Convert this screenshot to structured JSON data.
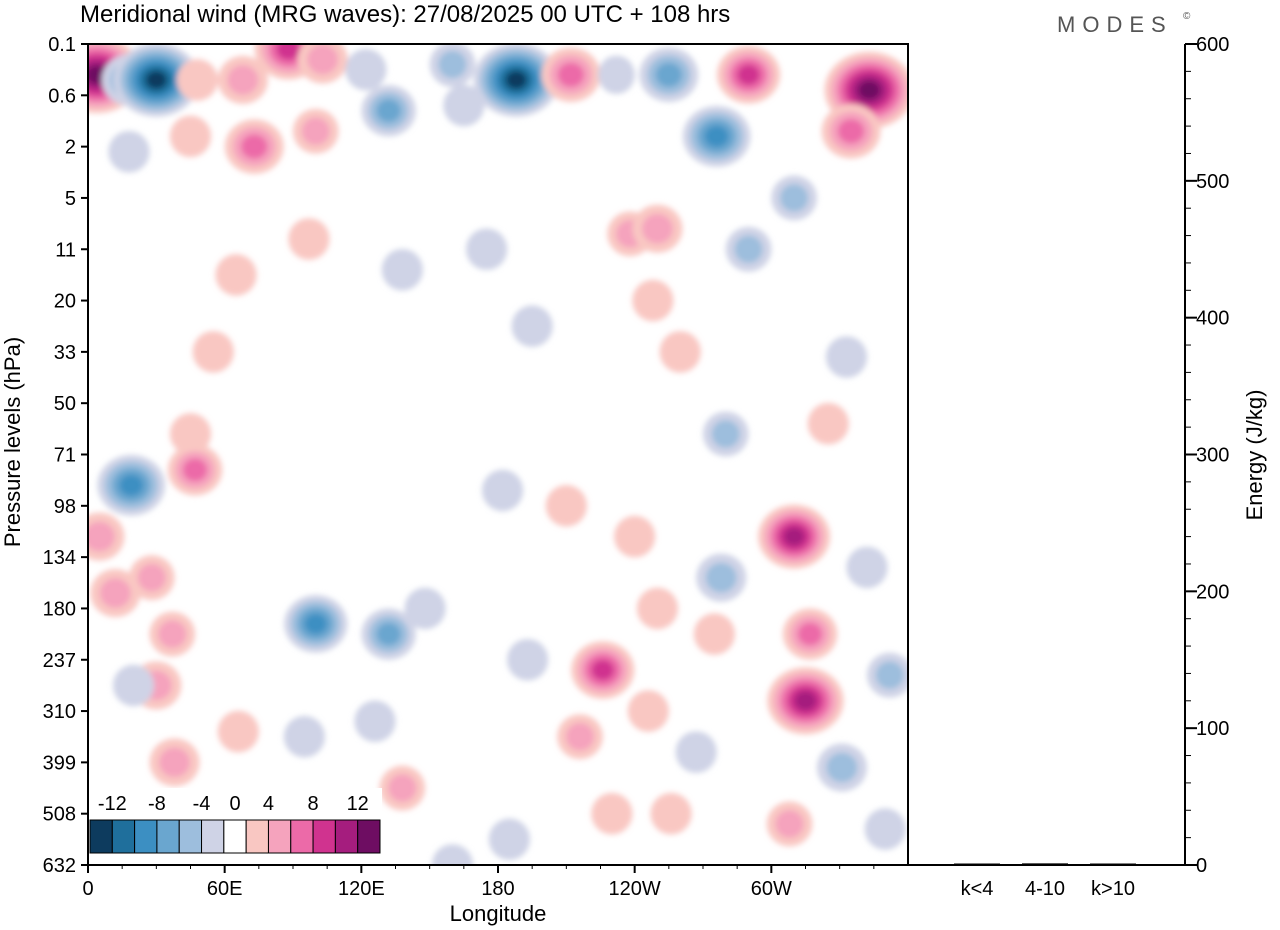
{
  "chart_data": [
    {
      "type": "heatmap",
      "title": "Meridional wind (MRG waves):  27/08/2025  00 UTC  + 108 hrs",
      "brand": "MODES",
      "brand_mark": "©",
      "xlabel": "Longitude",
      "ylabel": "Pressure levels (hPa)",
      "x_ticks": [
        "0",
        "60E",
        "120E",
        "180",
        "120W",
        "60W"
      ],
      "x_tick_degrees": [
        0,
        60,
        120,
        180,
        240,
        300
      ],
      "x_range_degrees": [
        0,
        360
      ],
      "y_ticks": [
        "0.1",
        "0.6",
        "2",
        "5",
        "11",
        "20",
        "33",
        "50",
        "71",
        "98",
        "134",
        "180",
        "237",
        "310",
        "399",
        "508",
        "632"
      ],
      "y_scale": "level index (top = 0.1 hPa, bottom = 632 hPa)",
      "colorbar": {
        "labels": [
          "-12",
          "-8",
          "-4",
          "0",
          "4",
          "8",
          "12"
        ],
        "bins": [
          -14,
          -12,
          -10,
          -8,
          -6,
          -4,
          -2,
          2,
          4,
          6,
          8,
          10,
          12,
          14
        ],
        "colors": [
          "#0d3b5e",
          "#1f6f9c",
          "#3c8fc2",
          "#6aa6cf",
          "#9dbedd",
          "#cfd3e6",
          "#ffffff",
          "#f9c7c2",
          "#f5a3bd",
          "#ec6aa8",
          "#d0338f",
          "#a51d7e",
          "#6e0d62"
        ]
      },
      "legend_position": "bottom-left",
      "features": [
        {
          "lon": 4,
          "level": 0.6,
          "value": 14
        },
        {
          "lon": 18,
          "level": 0.7,
          "value": -6
        },
        {
          "lon": 30,
          "level": 0.7,
          "value": -13
        },
        {
          "lon": 48,
          "level": 0.7,
          "value": 3
        },
        {
          "lon": 68,
          "level": 0.7,
          "value": 5
        },
        {
          "lon": 88,
          "level": 0.1,
          "value": 9
        },
        {
          "lon": 103,
          "level": 0.3,
          "value": 5
        },
        {
          "lon": 122,
          "level": 0.5,
          "value": -3
        },
        {
          "lon": 132,
          "level": 1.3,
          "value": -6
        },
        {
          "lon": 165,
          "level": 1.2,
          "value": -3
        },
        {
          "lon": 160,
          "level": 0.4,
          "value": -4
        },
        {
          "lon": 188,
          "level": 0.7,
          "value": -13
        },
        {
          "lon": 212,
          "level": 0.6,
          "value": 7
        },
        {
          "lon": 232,
          "level": 0.6,
          "value": -2
        },
        {
          "lon": 255,
          "level": 0.6,
          "value": -7
        },
        {
          "lon": 290,
          "level": 0.6,
          "value": 8
        },
        {
          "lon": 343,
          "level": 0.9,
          "value": 14
        },
        {
          "lon": 276,
          "level": 1.8,
          "value": -9
        },
        {
          "lon": 310,
          "level": 3.0,
          "value": -4
        },
        {
          "lon": 335,
          "level": 1.7,
          "value": 7
        },
        {
          "lon": 73,
          "level": 2.0,
          "value": 7
        },
        {
          "lon": 100,
          "level": 1.7,
          "value": 4
        },
        {
          "lon": 45,
          "level": 1.8,
          "value": 3
        },
        {
          "lon": 18,
          "level": 2.1,
          "value": -3
        },
        {
          "lon": 65,
          "level": 4.5,
          "value": 3
        },
        {
          "lon": 97,
          "level": 3.8,
          "value": 3
        },
        {
          "lon": 175,
          "level": 4.0,
          "value": -3
        },
        {
          "lon": 138,
          "level": 4.4,
          "value": -3
        },
        {
          "lon": 238,
          "level": 3.7,
          "value": 4
        },
        {
          "lon": 250,
          "level": 3.6,
          "value": 5
        },
        {
          "lon": 248,
          "level": 5.0,
          "value": 3
        },
        {
          "lon": 260,
          "level": 6.0,
          "value": 3
        },
        {
          "lon": 290,
          "level": 4.0,
          "value": -4
        },
        {
          "lon": 55,
          "level": 6.0,
          "value": 3
        },
        {
          "lon": 195,
          "level": 5.5,
          "value": -3
        },
        {
          "lon": 333,
          "level": 6.1,
          "value": -3
        },
        {
          "lon": 45,
          "level": 7.6,
          "value": 3
        },
        {
          "lon": 47,
          "level": 8.3,
          "value": 6
        },
        {
          "lon": 19,
          "level": 8.6,
          "value": -9
        },
        {
          "lon": 280,
          "level": 7.6,
          "value": -4
        },
        {
          "lon": 325,
          "level": 7.4,
          "value": 3
        },
        {
          "lon": 182,
          "level": 8.7,
          "value": -3
        },
        {
          "lon": 210,
          "level": 9.0,
          "value": 3
        },
        {
          "lon": 240,
          "level": 9.6,
          "value": 3
        },
        {
          "lon": 5,
          "level": 9.6,
          "value": 5
        },
        {
          "lon": 12,
          "level": 10.7,
          "value": 5
        },
        {
          "lon": 28,
          "level": 10.4,
          "value": 4
        },
        {
          "lon": 37,
          "level": 11.5,
          "value": 4
        },
        {
          "lon": 30,
          "level": 12.5,
          "value": 5
        },
        {
          "lon": 38,
          "level": 14.0,
          "value": 5
        },
        {
          "lon": 20,
          "level": 12.5,
          "value": -3
        },
        {
          "lon": 100,
          "level": 11.3,
          "value": -8
        },
        {
          "lon": 132,
          "level": 11.5,
          "value": -6
        },
        {
          "lon": 148,
          "level": 11.0,
          "value": -3
        },
        {
          "lon": 126,
          "level": 13.2,
          "value": -3
        },
        {
          "lon": 95,
          "level": 13.5,
          "value": -3
        },
        {
          "lon": 66,
          "level": 13.4,
          "value": 3
        },
        {
          "lon": 193,
          "level": 12.0,
          "value": -3
        },
        {
          "lon": 226,
          "level": 12.2,
          "value": 8
        },
        {
          "lon": 216,
          "level": 13.5,
          "value": 4
        },
        {
          "lon": 246,
          "level": 13.0,
          "value": 3
        },
        {
          "lon": 250,
          "level": 11.0,
          "value": 3
        },
        {
          "lon": 275,
          "level": 11.5,
          "value": 3
        },
        {
          "lon": 278,
          "level": 10.4,
          "value": -5
        },
        {
          "lon": 310,
          "level": 9.6,
          "value": 10
        },
        {
          "lon": 317,
          "level": 11.5,
          "value": 6
        },
        {
          "lon": 315,
          "level": 12.8,
          "value": 11
        },
        {
          "lon": 308,
          "level": 15.2,
          "value": 4
        },
        {
          "lon": 331,
          "level": 14.1,
          "value": -5
        },
        {
          "lon": 342,
          "level": 10.2,
          "value": -3
        },
        {
          "lon": 352,
          "level": 12.3,
          "value": -4
        },
        {
          "lon": 267,
          "level": 13.8,
          "value": -3
        },
        {
          "lon": 138,
          "level": 14.5,
          "value": 4
        },
        {
          "lon": 160,
          "level": 16.0,
          "value": -3
        },
        {
          "lon": 185,
          "level": 15.5,
          "value": -3
        },
        {
          "lon": 230,
          "level": 15.0,
          "value": 3
        },
        {
          "lon": 256,
          "level": 15.0,
          "value": 3
        },
        {
          "lon": 350,
          "level": 15.3,
          "value": -3
        }
      ]
    },
    {
      "type": "bar",
      "ylabel": "Energy (J/kg)",
      "ylim": [
        0,
        600
      ],
      "y_ticks": [
        "0",
        "100",
        "200",
        "300",
        "400",
        "500",
        "600"
      ],
      "categories": [
        "k<4",
        "4-10",
        "k>10"
      ],
      "values": [
        0.4,
        1.2,
        0.3
      ]
    }
  ]
}
